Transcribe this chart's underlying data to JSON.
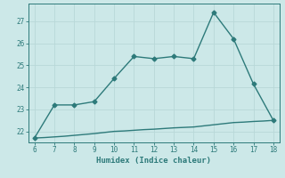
{
  "xlabel": "Humidex (Indice chaleur)",
  "ylabel": "",
  "bg_color": "#cce8e8",
  "line_color": "#2d7a7a",
  "grid_color": "#b8d8d8",
  "x_main": [
    6,
    7,
    8,
    9,
    10,
    11,
    12,
    13,
    14,
    15,
    16,
    17,
    18
  ],
  "y_main": [
    21.7,
    23.2,
    23.2,
    23.35,
    24.4,
    25.4,
    25.3,
    25.4,
    25.3,
    27.4,
    26.2,
    24.15,
    22.5
  ],
  "x_base": [
    6,
    6.5,
    7,
    7.5,
    8,
    8.5,
    9,
    9.5,
    10,
    10.5,
    11,
    11.5,
    12,
    12.5,
    13,
    13.5,
    14,
    14.5,
    15,
    15.5,
    16,
    16.5,
    17,
    17.5,
    18
  ],
  "y_base": [
    21.7,
    21.72,
    21.75,
    21.78,
    21.82,
    21.86,
    21.9,
    21.95,
    22.0,
    22.02,
    22.05,
    22.08,
    22.1,
    22.13,
    22.16,
    22.18,
    22.2,
    22.25,
    22.3,
    22.35,
    22.4,
    22.42,
    22.45,
    22.47,
    22.5
  ],
  "ylim": [
    21.5,
    27.8
  ],
  "xlim": [
    5.7,
    18.3
  ],
  "yticks": [
    22,
    23,
    24,
    25,
    26,
    27
  ],
  "xticks": [
    6,
    7,
    8,
    9,
    10,
    11,
    12,
    13,
    14,
    15,
    16,
    17,
    18
  ],
  "marker": "D",
  "markersize": 2.5,
  "linewidth": 1.0,
  "tick_fontsize": 5.5,
  "xlabel_fontsize": 6.5
}
